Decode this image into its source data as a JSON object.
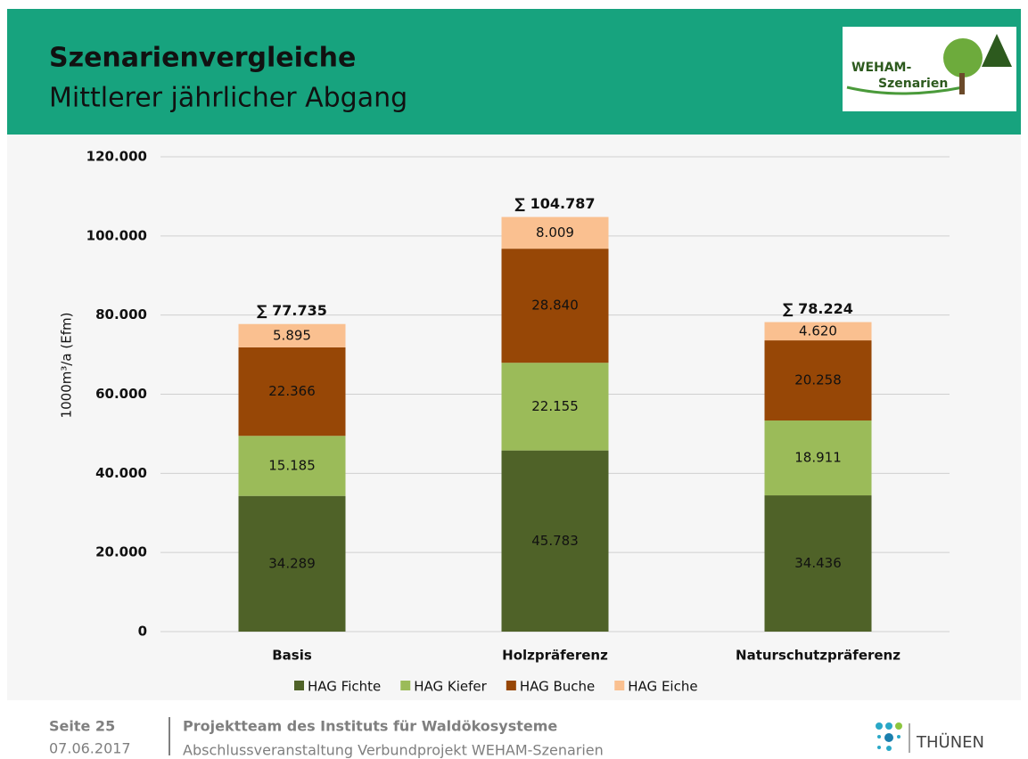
{
  "header": {
    "title": "Szenarienvergleiche",
    "subtitle": "Mittlerer jährlicher Abgang",
    "logo_lines": [
      "WEHAM-",
      "Szenarien"
    ]
  },
  "chart_data": {
    "type": "stacked-bar",
    "y_label": "1000m³/a (Efm)",
    "categories": [
      "Basis",
      "Holzpräferenz",
      "Naturschutzpräferenz"
    ],
    "series": [
      {
        "name": "HAG Fichte",
        "color": "#4f6228",
        "values": [
          34289,
          45783,
          34436
        ],
        "value_labels": [
          "34.289",
          "45.783",
          "34.436"
        ]
      },
      {
        "name": "HAG Kiefer",
        "color": "#9bbb59",
        "values": [
          15185,
          22155,
          18911
        ],
        "value_labels": [
          "15.185",
          "22.155",
          "18.911"
        ]
      },
      {
        "name": "HAG Buche",
        "color": "#974706",
        "values": [
          22366,
          28840,
          20258
        ],
        "value_labels": [
          "22.366",
          "28.840",
          "20.258"
        ]
      },
      {
        "name": "HAG Eiche",
        "color": "#fac090",
        "values": [
          5895,
          8009,
          4620
        ],
        "value_labels": [
          "5.895",
          "8.009",
          "4.620"
        ]
      }
    ],
    "totals": {
      "values": [
        77735,
        104787,
        78224
      ],
      "labels": [
        "∑ 77.735",
        "∑ 104.787",
        "∑ 78.224"
      ]
    },
    "ylim": [
      0,
      120000
    ],
    "yticks": [
      0,
      {
        "value": 20000,
        "label": "20.000"
      },
      {
        "value": 40000,
        "label": "40.000"
      },
      {
        "value": 60000,
        "label": "60.000"
      },
      {
        "value": 80000,
        "label": "80.000"
      },
      {
        "value": 100000,
        "label": "100.000"
      },
      {
        "value": 120000,
        "label": "120.000"
      }
    ],
    "grid": true,
    "legend": "bottom"
  },
  "footer": {
    "page": "Seite 25",
    "date": "07.06.2017",
    "team": "Projektteam des Instituts für Waldökosysteme",
    "event": "Abschlussveranstaltung Verbundprojekt WEHAM-Szenarien",
    "brand": "THÜNEN"
  }
}
